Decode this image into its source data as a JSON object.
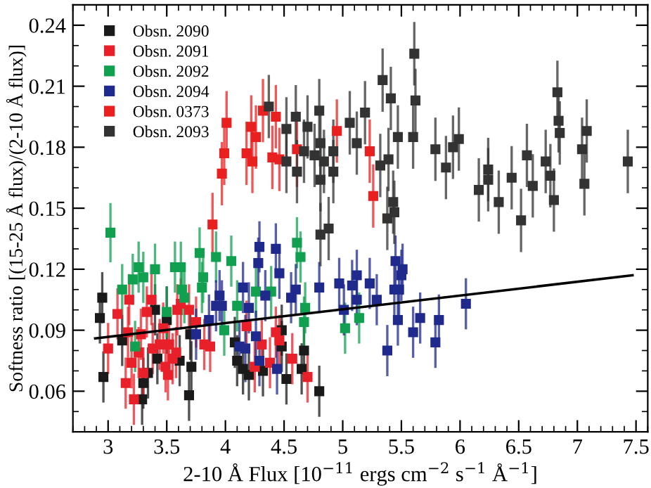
{
  "chart_data": {
    "type": "scatter",
    "xlabel": "2-10 Å Flux [10$^{−11}$ ergs cm$^{−2}$ s$^{−1}$ Å$^{−1}$]",
    "ylabel": "Softness ratio [(15-25 Å flux)/(2-10 Å flux)]",
    "xlim": [
      2.7,
      7.6
    ],
    "ylim": [
      0.04,
      0.25
    ],
    "xticks": [
      3,
      3.5,
      4,
      4.5,
      5,
      5.5,
      6,
      6.5,
      7,
      7.5
    ],
    "yticks": [
      0.06,
      0.09,
      0.12,
      0.15,
      0.18,
      0.21,
      0.24
    ],
    "marker": "square",
    "legend": "top left",
    "grid": false,
    "series": [
      {
        "name": "Obsn. 2090",
        "color": "#1a1a1a",
        "x": [
          2.93,
          2.95,
          2.96,
          3.12,
          3.29,
          3.3,
          3.34,
          3.4,
          3.42,
          3.5,
          3.61,
          3.69,
          3.71,
          3.7,
          4.08,
          4.1,
          4.15,
          4.2,
          4.32,
          4.48,
          4.52,
          4.65,
          4.67,
          4.8,
          4.48
        ],
        "values": [
          0.096,
          0.106,
          0.067,
          0.085,
          0.056,
          0.064,
          0.069,
          0.1,
          0.076,
          0.095,
          0.075,
          0.058,
          0.072,
          0.088,
          0.084,
          0.075,
          0.071,
          0.068,
          0.07,
          0.082,
          0.066,
          0.071,
          0.08,
          0.06,
          0.09
        ],
        "errors": [
          0.012,
          0.012,
          0.012,
          0.012,
          0.012,
          0.012,
          0.012,
          0.012,
          0.012,
          0.016,
          0.012,
          0.012,
          0.012,
          0.012,
          0.012,
          0.012,
          0.012,
          0.012,
          0.012,
          0.012,
          0.012,
          0.012,
          0.012,
          0.012,
          0.012
        ]
      },
      {
        "name": "Obsn. 2091",
        "color": "#e8202a",
        "x": [
          3.08,
          3.0,
          3.15,
          3.17,
          3.18,
          3.2,
          3.22,
          3.26,
          3.28,
          3.3,
          3.33,
          3.37,
          3.38,
          3.44,
          3.47,
          3.49,
          3.51,
          3.52,
          3.55,
          3.58,
          3.59,
          3.62,
          3.69,
          3.75,
          3.82,
          3.87,
          4.18,
          4.25,
          4.31,
          4.38,
          4.43,
          4.46,
          4.57,
          4.7
        ],
        "values": [
          0.098,
          0.081,
          0.064,
          0.089,
          0.105,
          0.074,
          0.056,
          0.079,
          0.088,
          0.069,
          0.099,
          0.105,
          0.081,
          0.083,
          0.091,
          0.072,
          0.068,
          0.083,
          0.076,
          0.079,
          0.1,
          0.103,
          0.1,
          0.094,
          0.083,
          0.082,
          0.092,
          0.072,
          0.083,
          0.074,
          0.089,
          0.085,
          0.076,
          0.067
        ],
        "errors": [
          0.012,
          0.012,
          0.012,
          0.012,
          0.012,
          0.012,
          0.012,
          0.012,
          0.012,
          0.012,
          0.012,
          0.012,
          0.012,
          0.012,
          0.012,
          0.012,
          0.012,
          0.012,
          0.012,
          0.012,
          0.012,
          0.012,
          0.012,
          0.012,
          0.012,
          0.012,
          0.012,
          0.012,
          0.012,
          0.012,
          0.012,
          0.012,
          0.012,
          0.012
        ]
      },
      {
        "name": "Obsn. 2092",
        "color": "#10a050",
        "x": [
          3.02,
          3.12,
          3.21,
          3.26,
          3.23,
          3.3,
          3.4,
          3.5,
          3.57,
          3.62,
          3.63,
          3.65,
          3.78,
          3.81,
          3.8,
          3.92,
          3.99,
          4.05,
          4.1,
          4.26,
          4.39,
          4.64,
          4.61,
          4.67,
          4.68,
          5.02,
          5.14
        ],
        "values": [
          0.138,
          0.11,
          0.115,
          0.121,
          0.082,
          0.116,
          0.12,
          0.099,
          0.121,
          0.121,
          0.11,
          0.106,
          0.128,
          0.116,
          0.111,
          0.126,
          0.09,
          0.124,
          0.102,
          0.109,
          0.109,
          0.126,
          0.133,
          0.094,
          0.101,
          0.091,
          0.096
        ],
        "errors": [
          0.014,
          0.012,
          0.012,
          0.012,
          0.012,
          0.012,
          0.012,
          0.012,
          0.012,
          0.012,
          0.012,
          0.012,
          0.012,
          0.012,
          0.012,
          0.012,
          0.012,
          0.012,
          0.012,
          0.012,
          0.012,
          0.012,
          0.012,
          0.012,
          0.012,
          0.012,
          0.012
        ]
      },
      {
        "name": "Obsn. 2094",
        "color": "#1f2a8c",
        "x": [
          3.75,
          3.86,
          3.92,
          3.95,
          3.97,
          4.12,
          4.15,
          4.17,
          4.2,
          4.26,
          4.28,
          4.29,
          4.29,
          4.34,
          4.46,
          4.56,
          4.6,
          4.44,
          4.8,
          4.43,
          5.01,
          5.08,
          5.12,
          5.12,
          5.23,
          5.29,
          5.38,
          5.44,
          5.45,
          5.47,
          5.48,
          5.5,
          5.51,
          5.6,
          5.66,
          5.79,
          5.82,
          6.05,
          4.97
        ],
        "values": [
          0.088,
          0.095,
          0.102,
          0.107,
          0.102,
          0.082,
          0.111,
          0.081,
          0.101,
          0.087,
          0.123,
          0.131,
          0.075,
          0.107,
          0.118,
          0.106,
          0.11,
          0.071,
          0.111,
          0.13,
          0.1,
          0.112,
          0.117,
          0.105,
          0.113,
          0.105,
          0.08,
          0.11,
          0.124,
          0.095,
          0.11,
          0.117,
          0.12,
          0.089,
          0.096,
          0.084,
          0.095,
          0.103,
          0.113
        ],
        "errors": [
          0.012,
          0.012,
          0.012,
          0.012,
          0.012,
          0.012,
          0.012,
          0.016,
          0.012,
          0.012,
          0.012,
          0.012,
          0.012,
          0.012,
          0.012,
          0.012,
          0.012,
          0.012,
          0.012,
          0.012,
          0.012,
          0.012,
          0.012,
          0.012,
          0.012,
          0.012,
          0.012,
          0.012,
          0.012,
          0.012,
          0.012,
          0.012,
          0.012,
          0.012,
          0.012,
          0.012,
          0.012,
          0.012,
          0.012
        ]
      },
      {
        "name": "Obsn. 0373",
        "color": "#e82020",
        "x": [
          3.89,
          3.97,
          3.99,
          4.01,
          4.18,
          4.22,
          4.23,
          4.26,
          4.32,
          4.4,
          4.43,
          4.46,
          4.61,
          4.95,
          5.23,
          5.26
        ],
        "values": [
          0.142,
          0.167,
          0.177,
          0.192,
          0.177,
          0.19,
          0.173,
          0.185,
          0.198,
          0.175,
          0.195,
          0.174,
          0.179,
          0.188,
          0.178,
          0.156
        ],
        "errors": [
          0.015,
          0.015,
          0.015,
          0.015,
          0.015,
          0.015,
          0.015,
          0.015,
          0.015,
          0.015,
          0.015,
          0.015,
          0.018,
          0.015,
          0.015,
          0.015
        ]
      },
      {
        "name": "Obsn. 2093",
        "color": "#333333",
        "x": [
          4.37,
          4.52,
          4.6,
          4.7,
          4.67,
          4.52,
          4.61,
          4.76,
          4.8,
          4.81,
          4.84,
          4.81,
          4.92,
          4.92,
          4.81,
          4.88,
          5.06,
          5.12,
          5.19,
          5.32,
          5.34,
          5.39,
          5.41,
          5.38,
          5.43,
          5.44,
          5.47,
          5.6,
          5.61,
          5.62,
          5.79,
          5.88,
          5.94,
          5.99,
          6.16,
          6.24,
          6.24,
          6.33,
          6.44,
          6.52,
          6.57,
          6.62,
          6.73,
          6.77,
          6.8,
          6.83,
          6.84,
          6.85,
          7.04,
          7.06,
          7.08,
          7.43
        ],
        "values": [
          0.2,
          0.189,
          0.195,
          0.19,
          0.178,
          0.173,
          0.168,
          0.176,
          0.198,
          0.182,
          0.173,
          0.164,
          0.178,
          0.168,
          0.137,
          0.14,
          0.192,
          0.182,
          0.197,
          0.171,
          0.213,
          0.174,
          0.204,
          0.145,
          0.153,
          0.148,
          0.185,
          0.185,
          0.226,
          0.203,
          0.179,
          0.17,
          0.18,
          0.184,
          0.159,
          0.169,
          0.164,
          0.153,
          0.165,
          0.144,
          0.176,
          0.161,
          0.173,
          0.166,
          0.154,
          0.207,
          0.193,
          0.187,
          0.179,
          0.162,
          0.188,
          0.173
        ],
        "errors": [
          0.015,
          0.015,
          0.015,
          0.015,
          0.015,
          0.015,
          0.015,
          0.015,
          0.015,
          0.015,
          0.015,
          0.015,
          0.015,
          0.015,
          0.015,
          0.015,
          0.015,
          0.015,
          0.015,
          0.015,
          0.015,
          0.015,
          0.015,
          0.015,
          0.015,
          0.015,
          0.015,
          0.015,
          0.015,
          0.015,
          0.015,
          0.015,
          0.015,
          0.015,
          0.015,
          0.015,
          0.015,
          0.015,
          0.015,
          0.015,
          0.015,
          0.015,
          0.015,
          0.015,
          0.015,
          0.015,
          0.015,
          0.015,
          0.015,
          0.015,
          0.015,
          0.015
        ]
      },
      {
        "type": "line",
        "marker": "none",
        "color": "#000000",
        "x": [
          2.89,
          7.47
        ],
        "values": [
          0.086,
          0.117
        ]
      }
    ]
  }
}
